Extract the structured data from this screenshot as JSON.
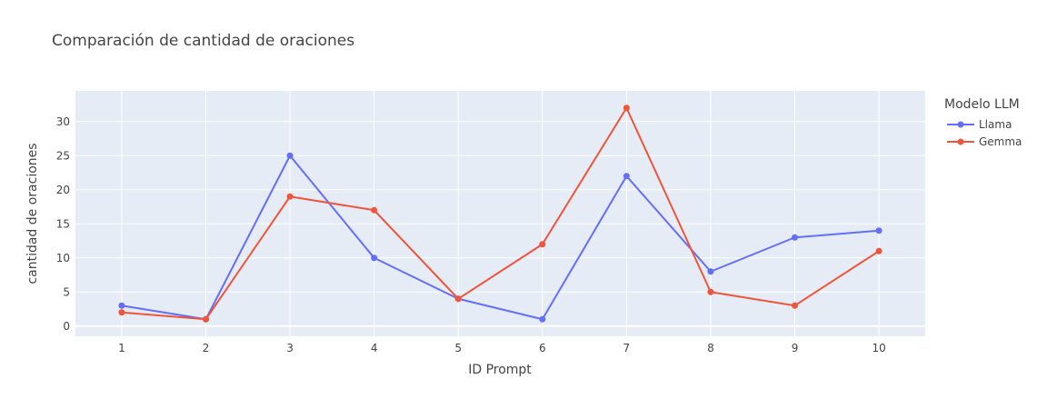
{
  "chart_data": {
    "type": "line",
    "title": "Comparación de cantidad de oraciones",
    "xlabel": "ID Prompt",
    "ylabel": "cantidad de oraciones",
    "x": [
      1,
      2,
      3,
      4,
      5,
      6,
      7,
      8,
      9,
      10
    ],
    "xlim": [
      0.45,
      10.55
    ],
    "ylim": [
      -1.5,
      34.5
    ],
    "yticks": [
      0,
      5,
      10,
      15,
      20,
      25,
      30
    ],
    "grid": true,
    "legend": {
      "title": "Modelo LLM",
      "position": "top-right"
    },
    "series": [
      {
        "name": "Llama",
        "color": "#636efa",
        "values": [
          3,
          1,
          25,
          10,
          4,
          1,
          22,
          8,
          13,
          14
        ]
      },
      {
        "name": "Gemma",
        "color": "#ef553b",
        "values": [
          2,
          1,
          19,
          17,
          4,
          12,
          32,
          5,
          3,
          11
        ]
      }
    ]
  }
}
